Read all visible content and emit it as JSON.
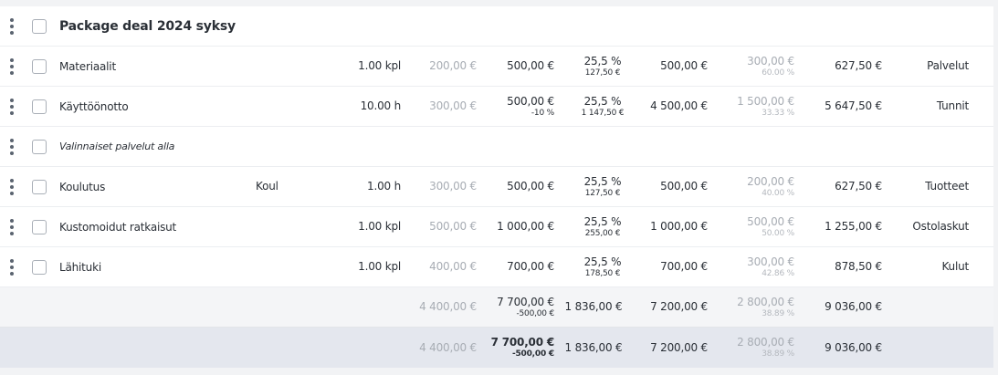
{
  "group": {
    "title": "Package deal 2024 syksy"
  },
  "rows": [
    {
      "name": "Materiaalit",
      "code": "",
      "qty": "1.00 kpl",
      "cost": "200,00 €",
      "price": "500,00 €",
      "price_sub": "",
      "vat": "25,5 %",
      "vat_sub": "127,50 €",
      "net": "500,00 €",
      "margin": "300,00 €",
      "margin_sub": "60.00 %",
      "gross": "627,50 €",
      "category": "Palvelut"
    },
    {
      "name": "Käyttöönotto",
      "code": "",
      "qty": "10.00 h",
      "cost": "300,00 €",
      "price": "500,00 €",
      "price_sub": "-10 %",
      "vat": "25,5 %",
      "vat_sub": "1 147,50 €",
      "net": "4 500,00 €",
      "margin": "1 500,00 €",
      "margin_sub": "33.33 %",
      "gross": "5 647,50 €",
      "category": "Tunnit"
    },
    {
      "name": "Valinnaiset palvelut alla",
      "italic": true
    },
    {
      "name": "Koulutus",
      "code": "Koul",
      "qty": "1.00 h",
      "cost": "300,00 €",
      "price": "500,00 €",
      "price_sub": "",
      "vat": "25,5 %",
      "vat_sub": "127,50 €",
      "net": "500,00 €",
      "margin": "200,00 €",
      "margin_sub": "40.00 %",
      "gross": "627,50 €",
      "category": "Tuotteet"
    },
    {
      "name": "Kustomoidut ratkaisut",
      "code": "",
      "qty": "1.00 kpl",
      "cost": "500,00 €",
      "price": "1 000,00 €",
      "price_sub": "",
      "vat": "25,5 %",
      "vat_sub": "255,00 €",
      "net": "1 000,00 €",
      "margin": "500,00 €",
      "margin_sub": "50.00 %",
      "gross": "1 255,00 €",
      "category": "Ostolaskut"
    },
    {
      "name": "Lähituki",
      "code": "",
      "qty": "1.00 kpl",
      "cost": "400,00 €",
      "price": "700,00 €",
      "price_sub": "",
      "vat": "25,5 %",
      "vat_sub": "178,50 €",
      "net": "700,00 €",
      "margin": "300,00 €",
      "margin_sub": "42.86 %",
      "gross": "878,50 €",
      "category": "Kulut"
    }
  ],
  "totals": [
    {
      "cost": "4 400,00 €",
      "price": "7 700,00 €",
      "price_sub": "-500,00 €",
      "vat": "1 836,00 €",
      "net": "7 200,00 €",
      "margin": "2 800,00 €",
      "margin_sub": "38.89 %",
      "gross": "9 036,00 €"
    },
    {
      "cost": "4 400,00 €",
      "price": "7 700,00 €",
      "price_sub": "-500,00 €",
      "vat": "1 836,00 €",
      "net": "7 200,00 €",
      "margin": "2 800,00 €",
      "margin_sub": "38.89 %",
      "gross": "9 036,00 €"
    }
  ],
  "colors": {
    "muted_text": "#a8adb4",
    "total_row_bg": "#f4f5f7",
    "grand_total_bg": "#e4e7ee"
  }
}
